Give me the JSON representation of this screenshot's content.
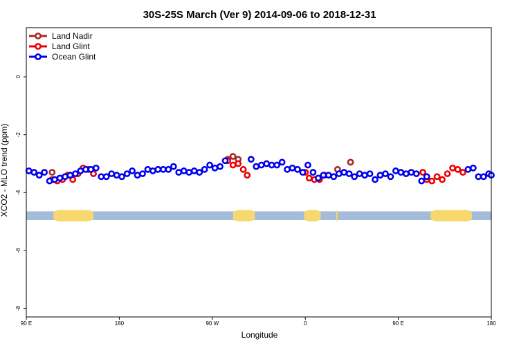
{
  "chart_data": {
    "type": "line",
    "title": "30S-25S March (Ver 9)   2014-09-06 to 2018-12-31",
    "xlabel": "Longitude",
    "ylabel": "XCO2 - MLO trend (ppm)",
    "xlim": [
      90,
      450
    ],
    "ylim": [
      -8.3,
      1.7
    ],
    "x_ticks": [
      {
        "value": 90,
        "label": "90 E"
      },
      {
        "value": 162,
        "label": "180"
      },
      {
        "value": 234,
        "label": "90 W"
      },
      {
        "value": 306,
        "label": "0"
      },
      {
        "value": 378,
        "label": "90 E"
      },
      {
        "value": 450,
        "label": "180"
      }
    ],
    "y_ticks": [
      {
        "value": 0,
        "label": "0"
      },
      {
        "value": -2,
        "label": "-2"
      },
      {
        "value": -4,
        "label": "-4"
      },
      {
        "value": -6,
        "label": "-6"
      },
      {
        "value": -8,
        "label": "-8"
      }
    ],
    "legend_position": "top-left",
    "grid": false,
    "land_ocean_band": {
      "y_range": [
        -4.95,
        -4.65
      ],
      "ocean_color": "#a4bbd9",
      "land_color": "#f7d86f",
      "land_segments": [
        [
          111,
          142
        ],
        [
          250,
          267
        ],
        [
          305,
          318
        ],
        [
          330,
          331
        ],
        [
          403,
          435
        ]
      ]
    },
    "series": [
      {
        "name": "Land Nadir",
        "color": "#a52a2a",
        "points": [
          [
            110,
            -3.3
          ],
          [
            246,
            -2.85
          ],
          [
            250,
            -2.75
          ],
          [
            254,
            -2.85
          ],
          [
            331,
            -3.2
          ],
          [
            341,
            -2.95
          ]
        ]
      },
      {
        "name": "Land Glint",
        "color": "#ee0000",
        "points": [
          [
            110,
            -3.55
          ],
          [
            114,
            -3.6
          ],
          [
            118,
            -3.55
          ],
          [
            122,
            -3.4
          ],
          [
            126,
            -3.55
          ],
          [
            130,
            -3.35
          ],
          [
            134,
            -3.15
          ],
          [
            138,
            -3.2
          ],
          [
            142,
            -3.35
          ],
          [
            246,
            -2.9
          ],
          [
            250,
            -3.05
          ],
          [
            254,
            -3.0
          ],
          [
            258,
            -3.2
          ],
          [
            261,
            -3.4
          ],
          [
            306,
            -3.3
          ],
          [
            309,
            -3.5
          ],
          [
            313,
            -3.55
          ],
          [
            317,
            -3.55
          ],
          [
            321,
            -3.4
          ],
          [
            397,
            -3.3
          ],
          [
            400,
            -3.55
          ],
          [
            404,
            -3.6
          ],
          [
            408,
            -3.45
          ],
          [
            412,
            -3.55
          ],
          [
            416,
            -3.35
          ],
          [
            420,
            -3.15
          ],
          [
            424,
            -3.2
          ],
          [
            428,
            -3.3
          ]
        ]
      },
      {
        "name": "Ocean Glint",
        "color": "#0000ee",
        "line_segments": [
          [
            108,
            138
          ]
        ],
        "points": [
          [
            92,
            -3.25
          ],
          [
            96,
            -3.3
          ],
          [
            100,
            -3.4
          ],
          [
            104,
            -3.3
          ],
          [
            108,
            -3.6
          ],
          [
            112,
            -3.55
          ],
          [
            116,
            -3.5
          ],
          [
            120,
            -3.45
          ],
          [
            124,
            -3.4
          ],
          [
            128,
            -3.35
          ],
          [
            132,
            -3.25
          ],
          [
            136,
            -3.2
          ],
          [
            140,
            -3.2
          ],
          [
            144,
            -3.15
          ],
          [
            148,
            -3.45
          ],
          [
            152,
            -3.45
          ],
          [
            156,
            -3.35
          ],
          [
            160,
            -3.4
          ],
          [
            164,
            -3.45
          ],
          [
            168,
            -3.35
          ],
          [
            172,
            -3.25
          ],
          [
            176,
            -3.4
          ],
          [
            180,
            -3.35
          ],
          [
            184,
            -3.2
          ],
          [
            188,
            -3.25
          ],
          [
            192,
            -3.2
          ],
          [
            196,
            -3.2
          ],
          [
            200,
            -3.2
          ],
          [
            204,
            -3.1
          ],
          [
            208,
            -3.3
          ],
          [
            212,
            -3.25
          ],
          [
            216,
            -3.3
          ],
          [
            220,
            -3.25
          ],
          [
            224,
            -3.3
          ],
          [
            228,
            -3.2
          ],
          [
            232,
            -3.05
          ],
          [
            236,
            -3.15
          ],
          [
            240,
            -3.1
          ],
          [
            244,
            -2.9
          ],
          [
            264,
            -2.85
          ],
          [
            268,
            -3.1
          ],
          [
            272,
            -3.05
          ],
          [
            276,
            -3.0
          ],
          [
            280,
            -3.05
          ],
          [
            284,
            -3.05
          ],
          [
            288,
            -2.95
          ],
          [
            292,
            -3.2
          ],
          [
            296,
            -3.15
          ],
          [
            300,
            -3.2
          ],
          [
            304,
            -3.3
          ],
          [
            308,
            -3.05
          ],
          [
            312,
            -3.3
          ],
          [
            316,
            -3.5
          ],
          [
            320,
            -3.4
          ],
          [
            324,
            -3.4
          ],
          [
            328,
            -3.45
          ],
          [
            332,
            -3.35
          ],
          [
            336,
            -3.3
          ],
          [
            340,
            -3.35
          ],
          [
            344,
            -3.45
          ],
          [
            348,
            -3.35
          ],
          [
            352,
            -3.4
          ],
          [
            356,
            -3.35
          ],
          [
            360,
            -3.55
          ],
          [
            364,
            -3.4
          ],
          [
            368,
            -3.35
          ],
          [
            372,
            -3.45
          ],
          [
            376,
            -3.25
          ],
          [
            380,
            -3.3
          ],
          [
            384,
            -3.35
          ],
          [
            388,
            -3.3
          ],
          [
            392,
            -3.35
          ],
          [
            396,
            -3.6
          ],
          [
            400,
            -3.45
          ],
          [
            432,
            -3.2
          ],
          [
            436,
            -3.15
          ],
          [
            440,
            -3.45
          ],
          [
            444,
            -3.45
          ],
          [
            448,
            -3.35
          ],
          [
            450,
            -3.4
          ]
        ]
      }
    ]
  }
}
